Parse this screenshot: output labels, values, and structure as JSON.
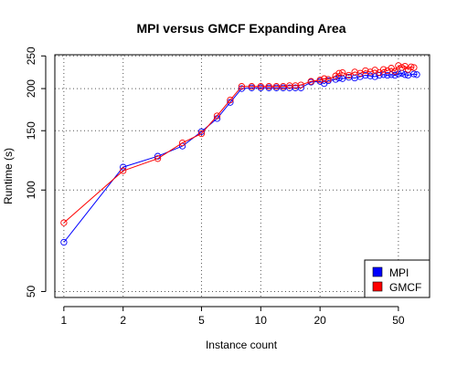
{
  "chart_data": {
    "type": "line",
    "title": "MPI versus GMCF Expanding Area",
    "xlabel": "Instance count",
    "ylabel": "Runtime (s)",
    "xscale": "log",
    "yscale": "log",
    "xlim": [
      0.9,
      72
    ],
    "ylim": [
      48,
      252
    ],
    "xticks": [
      1,
      2,
      5,
      10,
      20,
      50
    ],
    "yticks": [
      50,
      100,
      150,
      200,
      250
    ],
    "grid": true,
    "legend_position": "bottom-right",
    "series": [
      {
        "name": "MPI",
        "color": "#0000ff",
        "points": [
          [
            1,
            70
          ],
          [
            2,
            117
          ],
          [
            3,
            126
          ],
          [
            4,
            135
          ],
          [
            5,
            149
          ],
          [
            6,
            163
          ],
          [
            7,
            182
          ],
          [
            8,
            200
          ],
          [
            9,
            201
          ],
          [
            10,
            201
          ],
          [
            11,
            201
          ],
          [
            12,
            201
          ],
          [
            13,
            201
          ],
          [
            14,
            201
          ],
          [
            15,
            201
          ],
          [
            16,
            201
          ],
          [
            18,
            209
          ],
          [
            20,
            210
          ],
          [
            21,
            207
          ],
          [
            22,
            211
          ],
          [
            24,
            213
          ],
          [
            25,
            215
          ],
          [
            26,
            214
          ],
          [
            28,
            216
          ],
          [
            30,
            215
          ],
          [
            32,
            217
          ],
          [
            34,
            219
          ],
          [
            36,
            218
          ],
          [
            38,
            217
          ],
          [
            40,
            219
          ],
          [
            42,
            220
          ],
          [
            44,
            219
          ],
          [
            46,
            220
          ],
          [
            48,
            219
          ],
          [
            50,
            221
          ],
          [
            52,
            222
          ],
          [
            54,
            220
          ],
          [
            56,
            219
          ],
          [
            60,
            221
          ],
          [
            62,
            220
          ]
        ]
      },
      {
        "name": "GMCF",
        "color": "#ff0000",
        "points": [
          [
            1,
            80
          ],
          [
            2,
            114
          ],
          [
            3,
            124
          ],
          [
            4,
            138
          ],
          [
            5,
            147
          ],
          [
            6,
            166
          ],
          [
            7,
            185
          ],
          [
            8,
            203
          ],
          [
            9,
            203
          ],
          [
            10,
            203
          ],
          [
            11,
            203
          ],
          [
            12,
            203
          ],
          [
            13,
            203
          ],
          [
            14,
            204
          ],
          [
            15,
            204
          ],
          [
            16,
            205
          ],
          [
            18,
            210
          ],
          [
            20,
            212
          ],
          [
            21,
            214
          ],
          [
            22,
            213
          ],
          [
            24,
            218
          ],
          [
            25,
            222
          ],
          [
            26,
            223
          ],
          [
            28,
            219
          ],
          [
            30,
            224
          ],
          [
            32,
            222
          ],
          [
            34,
            226
          ],
          [
            36,
            224
          ],
          [
            38,
            227
          ],
          [
            40,
            223
          ],
          [
            42,
            228
          ],
          [
            44,
            226
          ],
          [
            46,
            230
          ],
          [
            48,
            225
          ],
          [
            50,
            234
          ],
          [
            52,
            231
          ],
          [
            54,
            233
          ],
          [
            56,
            228
          ],
          [
            58,
            232
          ],
          [
            60,
            231
          ]
        ]
      }
    ]
  }
}
